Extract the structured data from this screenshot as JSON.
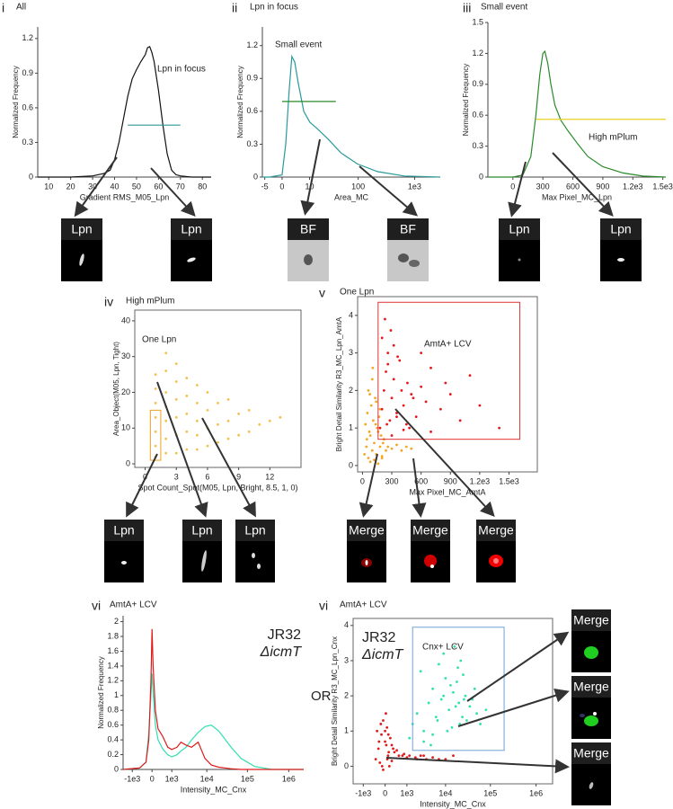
{
  "chart_data": [
    {
      "type": "line",
      "panel_label": "i",
      "title": "All",
      "xlabel": "Gradient RMS_M05_Lpn",
      "ylabel": "Normalized Frequency",
      "xlim": [
        5,
        84
      ],
      "ylim": [
        0,
        1.3
      ],
      "xticks": [
        10,
        20,
        30,
        40,
        50,
        60,
        70,
        80
      ],
      "yticks": [
        0,
        0.3,
        0.6,
        0.9,
        1.2
      ],
      "color": "#111111",
      "x": [
        5,
        20,
        30,
        35,
        38,
        40,
        42,
        44,
        46,
        48,
        50,
        52,
        54,
        55,
        56,
        57,
        58,
        60,
        62,
        64,
        66,
        68,
        70,
        75,
        84
      ],
      "values": [
        0,
        0,
        0.01,
        0.03,
        0.06,
        0.15,
        0.3,
        0.5,
        0.7,
        0.85,
        0.93,
        1.0,
        1.06,
        1.12,
        1.13,
        1.08,
        1.0,
        0.75,
        0.45,
        0.2,
        0.06,
        0.02,
        0.01,
        0,
        0
      ],
      "gates": [
        {
          "label": "Lpn in focus",
          "x": [
            46,
            70
          ],
          "y": 0.45,
          "color": "#2a9a9a"
        }
      ]
    },
    {
      "type": "line",
      "panel_label": "ii",
      "title": "Lpn in focus",
      "xlabel": "Area_MC",
      "ylabel": "Normalized Frequency",
      "xscale": "symlog",
      "xlim": [
        -6,
        2800
      ],
      "ylim": [
        0,
        1.37
      ],
      "xticks": [
        -5,
        0,
        10,
        100,
        {
          "value": 1000,
          "label": "1e3"
        }
      ],
      "yticks": [
        0,
        0.3,
        0.6,
        0.9,
        1.2
      ],
      "color": "#2a9a9a",
      "x": [
        -6,
        -3.3,
        0,
        0.78,
        1.67,
        2.4,
        3.3,
        4.6,
        6.9,
        10.2,
        14.6,
        26,
        48,
        97,
        222,
        660,
        2800
      ],
      "values": [
        0,
        0,
        0.02,
        0.3,
        0.8,
        1.1,
        1.05,
        0.85,
        0.6,
        0.5,
        0.45,
        0.35,
        0.22,
        0.12,
        0.05,
        0.01,
        0
      ],
      "gates": [
        {
          "label": "Small event",
          "x": [
            0,
            38
          ],
          "y": 0.69,
          "color": "#2a8a2a"
        }
      ]
    },
    {
      "type": "line",
      "panel_label": "iii",
      "title": "Small event",
      "xlabel": "Max Pixel_MC_Lpn",
      "ylabel": "Normalized Frequency",
      "xlim": [
        -250,
        1530
      ],
      "ylim": [
        0,
        1.5
      ],
      "xticks": [
        0,
        300,
        600,
        900,
        {
          "value": 1200,
          "label": "1.2e3"
        },
        {
          "value": 1500,
          "label": "1.5e3"
        }
      ],
      "yticks": [
        0,
        0.3,
        0.6,
        0.9,
        1.2,
        1.5
      ],
      "color": "#2a8a2a",
      "x": [
        -250,
        0,
        100,
        180,
        230,
        270,
        300,
        320,
        350,
        380,
        420,
        480,
        550,
        650,
        750,
        900,
        1100,
        1300,
        1530
      ],
      "values": [
        0,
        0,
        0.02,
        0.2,
        0.6,
        1.0,
        1.2,
        1.22,
        1.1,
        0.9,
        0.7,
        0.55,
        0.45,
        0.32,
        0.2,
        0.1,
        0.04,
        0.01,
        0
      ],
      "gates": [
        {
          "label": "High mPlum",
          "x": [
            230,
            1530
          ],
          "y": 0.56,
          "color": "#e8d020"
        }
      ]
    },
    {
      "type": "scatter",
      "panel_label": "iv",
      "title": "High mPlum",
      "xlabel": "Spot Count_Spot(M05, Lpn, Bright, 8.5, 1, 0)",
      "ylabel": "Area_Object(M05, Lpn, Tight)",
      "xlim": [
        -1,
        15
      ],
      "ylim": [
        -1,
        43
      ],
      "xticks": [
        0,
        3,
        6,
        9,
        12
      ],
      "yticks": [
        0,
        10,
        20,
        30,
        40
      ],
      "series": [
        {
          "color": "#f2c14e",
          "x": [
            1,
            1,
            1,
            1,
            1,
            1,
            1,
            2,
            2,
            2,
            2,
            2,
            2,
            2,
            3,
            3,
            3,
            3,
            3,
            3,
            4,
            4,
            4,
            4,
            4,
            5,
            5,
            5,
            5,
            5,
            6,
            6,
            6,
            6,
            7,
            7,
            7,
            8,
            8,
            8,
            9,
            9,
            10,
            10,
            11,
            12,
            13
          ],
          "values": [
            2,
            5,
            9,
            13,
            17,
            21,
            25,
            3,
            7,
            12,
            16,
            20,
            26,
            31,
            3,
            8,
            13,
            18,
            23,
            28,
            4,
            9,
            14,
            19,
            24,
            4,
            8,
            12,
            17,
            22,
            5,
            10,
            15,
            20,
            6,
            11,
            17,
            7,
            12,
            18,
            8,
            14,
            9,
            15,
            11,
            12,
            13
          ]
        }
      ],
      "gates": [
        {
          "label": "One Lpn",
          "x": [
            0.5,
            1.5
          ],
          "y": [
            1,
            15
          ],
          "color": "#f0a020"
        }
      ]
    },
    {
      "type": "scatter",
      "panel_label": "v",
      "title": "One Lpn",
      "xlabel": "Max Pixel_MC_AmtA",
      "ylabel": "Bright Detail Similarity R3_MC_Lpn_AmtA",
      "xlim": [
        -50,
        1790
      ],
      "ylim": [
        -0.17,
        4.5
      ],
      "xticks": [
        0,
        300,
        600,
        900,
        {
          "value": 1200,
          "label": "1.2e3"
        },
        {
          "value": 1500,
          "label": "1.5e3"
        }
      ],
      "yticks": [
        0,
        1,
        2,
        3,
        4
      ],
      "series": [
        {
          "color": "#f5a623",
          "x": [
            20,
            40,
            60,
            80,
            100,
            120,
            140,
            160,
            180,
            200,
            220,
            240,
            30,
            50,
            70,
            90,
            110,
            130,
            150,
            170,
            190,
            210,
            60,
            100,
            140,
            180,
            80,
            120,
            160,
            200,
            260,
            300,
            350,
            400,
            450,
            500,
            45,
            75,
            105,
            135
          ],
          "values": [
            0.3,
            0.5,
            0.2,
            0.8,
            0.4,
            0.6,
            0.3,
            0.9,
            0.5,
            0.2,
            0.7,
            0.4,
            1.1,
            1.4,
            0.9,
            1.6,
            1.2,
            1.8,
            1.0,
            1.3,
            0.8,
            0.6,
            2.0,
            2.3,
            1.7,
            1.5,
            0.1,
            0.15,
            0.05,
            0.25,
            0.5,
            0.45,
            0.55,
            0.4,
            0.5,
            0.45,
            0.7,
            1.9,
            2.6,
            1.1
          ]
        },
        {
          "color": "#e8161b",
          "x": [
            180,
            200,
            220,
            240,
            260,
            280,
            300,
            320,
            350,
            380,
            420,
            460,
            500,
            550,
            600,
            650,
            700,
            800,
            900,
            1000,
            1100,
            1200,
            1400,
            200,
            230,
            260,
            290,
            320,
            360,
            400,
            450,
            520,
            600,
            700,
            850,
            250,
            300,
            350,
            420,
            480
          ],
          "values": [
            1.0,
            1.5,
            2.0,
            2.5,
            3.0,
            1.2,
            1.8,
            2.3,
            1.4,
            2.8,
            1.6,
            2.2,
            1.9,
            1.3,
            2.1,
            1.7,
            2.6,
            1.5,
            1.9,
            1.2,
            2.4,
            1.6,
            1.0,
            3.4,
            3.9,
            2.7,
            3.6,
            3.2,
            2.9,
            2.0,
            1.1,
            1.8,
            3.0,
            0.9,
            2.2,
            1.1,
            0.8,
            1.3,
            0.95,
            1.0
          ]
        }
      ],
      "gates": [
        {
          "label": "AmtA+ LCV",
          "x": [
            160,
            1610
          ],
          "y": [
            0.7,
            4.35
          ],
          "color": "#e03030"
        }
      ]
    },
    {
      "type": "line",
      "panel_label": "vi",
      "title": "AmtA+ LCV",
      "xlabel": "Intensity_MC_Cnx",
      "ylabel": "Normalized Frequency",
      "xscale": "symlog",
      "legend": "upper right",
      "xlim": [
        -2000,
        2300000
      ],
      "ylim": [
        0,
        2.08
      ],
      "xticks": [
        {
          "value": -1000,
          "label": "-1e3"
        },
        0,
        {
          "value": 1000,
          "label": "1e3"
        },
        {
          "value": 10000,
          "label": "1e4"
        },
        {
          "value": 100000,
          "label": "1e5"
        },
        {
          "value": 1000000,
          "label": "1e6"
        }
      ],
      "yticks": [
        0,
        0.2,
        0.4,
        0.6,
        0.8,
        1,
        1.2,
        1.4,
        1.6,
        1.8,
        2
      ],
      "x": [
        -2000,
        -500,
        -200,
        -100,
        -30,
        0,
        30,
        100,
        200,
        400,
        700,
        1000,
        1500,
        2000,
        2800,
        4000,
        6000,
        9000,
        13000,
        20000,
        40000,
        70000,
        150000,
        400000,
        2300000
      ],
      "series": [
        {
          "name": "JR32",
          "color": "#2fe0b0",
          "values": [
            0,
            0.02,
            0.1,
            0.5,
            1.0,
            1.3,
            1.05,
            0.6,
            0.4,
            0.28,
            0.2,
            0.17,
            0.2,
            0.25,
            0.3,
            0.4,
            0.5,
            0.58,
            0.6,
            0.52,
            0.3,
            0.15,
            0.04,
            0,
            0
          ]
        },
        {
          "name": "ΔicmT",
          "color": "#e01a1a",
          "values": [
            0,
            0.02,
            0.1,
            0.4,
            1.2,
            1.9,
            1.4,
            0.8,
            0.55,
            0.45,
            0.3,
            0.27,
            0.3,
            0.37,
            0.33,
            0.3,
            0.37,
            0.15,
            0.06,
            0.03,
            0.01,
            0,
            0,
            0,
            0
          ]
        }
      ]
    },
    {
      "type": "scatter",
      "panel_label": "vi",
      "title": "AmtA+ LCV",
      "xlabel": "Intensity_MC_Cnx",
      "ylabel": "Bright Detail Similarity R3_MC_Lpn_Cnx",
      "xscale": "symlog",
      "legend": "upper left",
      "xlim": [
        -2000,
        2300000
      ],
      "ylim": [
        -0.5,
        4.2
      ],
      "xticks": [
        {
          "value": -1000,
          "label": "-1e3"
        },
        0,
        {
          "value": 1000,
          "label": "1e3"
        },
        {
          "value": 10000,
          "label": "1e4"
        },
        {
          "value": 100000,
          "label": "1e5"
        },
        {
          "value": 1000000,
          "label": "1e6"
        }
      ],
      "yticks": [
        0,
        1,
        2,
        3,
        4
      ],
      "series": [
        {
          "name": "JR32",
          "color": "#2fe0b0",
          "x": [
            1500,
            2000,
            3000,
            4000,
            5000,
            6000,
            8000,
            10000,
            12000,
            15000,
            20000,
            25000,
            30000,
            40000,
            50000,
            3000,
            5000,
            7000,
            9000,
            14000,
            18000,
            22000,
            28000,
            35000,
            60000,
            2500,
            4500,
            6500,
            11000,
            16000,
            24000,
            45000,
            80000,
            1200,
            9000,
            13000,
            17000,
            19000,
            21000,
            26000
          ],
          "values": [
            1.2,
            1.5,
            1.0,
            1.8,
            2.2,
            1.4,
            1.9,
            2.5,
            1.6,
            2.1,
            1.8,
            2.6,
            1.3,
            1.9,
            1.5,
            0.7,
            0.9,
            2.9,
            3.2,
            1.1,
            2.4,
            3.0,
            2.0,
            1.7,
            1.2,
            2.7,
            0.6,
            1.3,
            1.0,
            3.4,
            1.4,
            2.2,
            1.6,
            0.8,
            2.0,
            2.3,
            1.7,
            2.8,
            1.2,
            1.9
          ]
        },
        {
          "name": "ΔicmT",
          "color": "#e01a1a",
          "x": [
            -300,
            -200,
            -100,
            -50,
            0,
            50,
            100,
            200,
            -150,
            -80,
            20,
            80,
            150,
            300,
            500,
            800,
            1200,
            1800,
            2500,
            3500,
            5000,
            -250,
            -120,
            60,
            120,
            250,
            400,
            -50,
            30,
            700,
            1000,
            2000,
            3000,
            7000,
            -180,
            0,
            90,
            200,
            10000,
            15000
          ],
          "values": [
            0.2,
            0.5,
            0.9,
            1.3,
            0.7,
            1.1,
            0.4,
            0.6,
            0.1,
            0.0,
            1.5,
            0.3,
            0.8,
            0.4,
            0.3,
            0.35,
            0.3,
            0.25,
            0.3,
            0.2,
            0.25,
            1.0,
            1.2,
            0.2,
            0.0,
            0.5,
            0.45,
            -0.1,
            0.6,
            0.3,
            0.25,
            0.2,
            0.3,
            0.2,
            0.7,
            1.0,
            0.9,
            0.15,
            0.2,
            0.3
          ]
        }
      ],
      "gates": [
        {
          "label": "Cnx+ LCV",
          "x": [
            1500,
            200000
          ],
          "y": [
            0.45,
            3.95
          ],
          "color": "#6fa0d8"
        }
      ]
    }
  ],
  "thumbnails": [
    {
      "label": "Lpn"
    },
    {
      "label": "Lpn"
    },
    {
      "label": "BF"
    },
    {
      "label": "BF"
    },
    {
      "label": "Lpn"
    },
    {
      "label": "Lpn"
    },
    {
      "label": "Lpn"
    },
    {
      "label": "Lpn"
    },
    {
      "label": "Lpn"
    },
    {
      "label": "Merge"
    },
    {
      "label": "Merge"
    },
    {
      "label": "Merge"
    },
    {
      "label": "Merge"
    },
    {
      "label": "Merge"
    },
    {
      "label": "Merge"
    }
  ],
  "connector": "OR"
}
